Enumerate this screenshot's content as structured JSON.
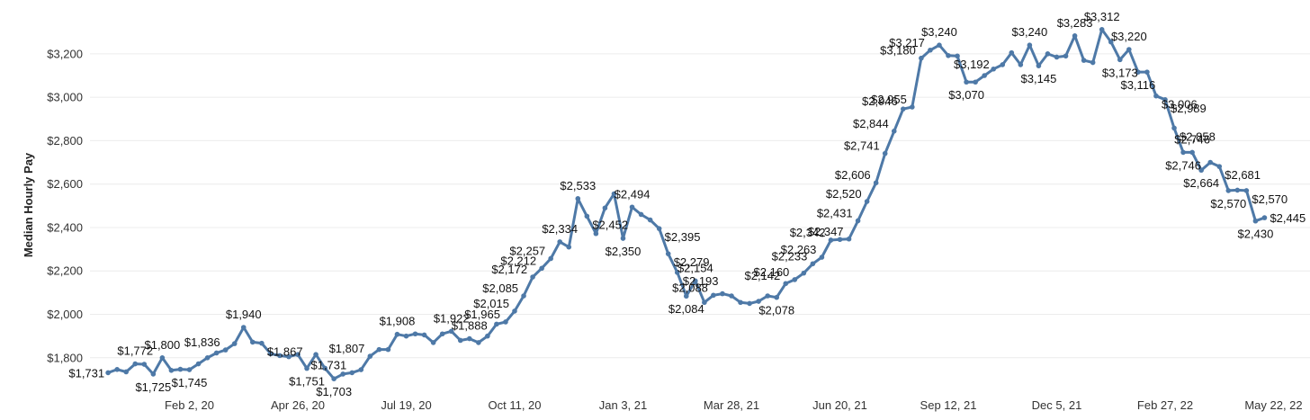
{
  "chart_data": {
    "type": "line",
    "title": "",
    "xlabel": "",
    "ylabel": "Median Hourly Pay",
    "ylim": [
      1650,
      3390
    ],
    "yticks": [
      {
        "value": 1800,
        "label": "$1,800"
      },
      {
        "value": 2000,
        "label": "$2,000"
      },
      {
        "value": 2200,
        "label": "$2,200"
      },
      {
        "value": 2400,
        "label": "$2,400"
      },
      {
        "value": 2600,
        "label": "$2,600"
      },
      {
        "value": 2800,
        "label": "$2,800"
      },
      {
        "value": 3000,
        "label": "$3,000"
      },
      {
        "value": 3200,
        "label": "$3,200"
      }
    ],
    "xticks": [
      {
        "date": "2020-02-02",
        "label": "Feb 2, 20"
      },
      {
        "date": "2020-04-26",
        "label": "Apr 26, 20"
      },
      {
        "date": "2020-07-19",
        "label": "Jul 19, 20"
      },
      {
        "date": "2020-10-11",
        "label": "Oct 11, 20"
      },
      {
        "date": "2021-01-03",
        "label": "Jan 3, 21"
      },
      {
        "date": "2021-03-28",
        "label": "Mar 28, 21"
      },
      {
        "date": "2021-06-20",
        "label": "Jun 20, 21"
      },
      {
        "date": "2021-09-12",
        "label": "Sep 12, 21"
      },
      {
        "date": "2021-12-05",
        "label": "Dec 5, 21"
      },
      {
        "date": "2022-02-27",
        "label": "Feb 27, 22"
      },
      {
        "date": "2022-05-22",
        "label": "May 22, 22"
      }
    ],
    "grid": true,
    "color": "#4e79a7",
    "series": [
      {
        "points": [
          {
            "x": "2019-12-01",
            "y": 1731,
            "label": "$1,731"
          },
          {
            "x": "2019-12-08",
            "y": 1746
          },
          {
            "x": "2019-12-15",
            "y": 1735
          },
          {
            "x": "2019-12-22",
            "y": 1772,
            "label": "$1,772"
          },
          {
            "x": "2019-12-29",
            "y": 1770
          },
          {
            "x": "2020-01-05",
            "y": 1725,
            "label": "$1,725"
          },
          {
            "x": "2020-01-12",
            "y": 1800,
            "label": "$1,800"
          },
          {
            "x": "2020-01-19",
            "y": 1742
          },
          {
            "x": "2020-01-26",
            "y": 1747
          },
          {
            "x": "2020-02-02",
            "y": 1745,
            "label": "$1,745"
          },
          {
            "x": "2020-02-09",
            "y": 1772
          },
          {
            "x": "2020-02-16",
            "y": 1800
          },
          {
            "x": "2020-02-23",
            "y": 1822
          },
          {
            "x": "2020-03-01",
            "y": 1836,
            "label": "$1,836"
          },
          {
            "x": "2020-03-08",
            "y": 1865
          },
          {
            "x": "2020-03-15",
            "y": 1940,
            "label": "$1,940"
          },
          {
            "x": "2020-03-22",
            "y": 1872
          },
          {
            "x": "2020-03-29",
            "y": 1867,
            "label": "$1,867"
          },
          {
            "x": "2020-04-05",
            "y": 1818
          },
          {
            "x": "2020-04-12",
            "y": 1810
          },
          {
            "x": "2020-04-19",
            "y": 1805
          },
          {
            "x": "2020-04-26",
            "y": 1815
          },
          {
            "x": "2020-05-03",
            "y": 1751,
            "label": "$1,751"
          },
          {
            "x": "2020-05-10",
            "y": 1815
          },
          {
            "x": "2020-05-17",
            "y": 1752
          },
          {
            "x": "2020-05-24",
            "y": 1703,
            "label": "$1,703"
          },
          {
            "x": "2020-05-31",
            "y": 1725
          },
          {
            "x": "2020-06-07",
            "y": 1731,
            "label": "$1,731"
          },
          {
            "x": "2020-06-14",
            "y": 1745
          },
          {
            "x": "2020-06-21",
            "y": 1807,
            "label": "$1,807"
          },
          {
            "x": "2020-06-28",
            "y": 1838
          },
          {
            "x": "2020-07-05",
            "y": 1838
          },
          {
            "x": "2020-07-12",
            "y": 1908,
            "label": "$1,908"
          },
          {
            "x": "2020-07-19",
            "y": 1900
          },
          {
            "x": "2020-07-26",
            "y": 1910
          },
          {
            "x": "2020-08-02",
            "y": 1905
          },
          {
            "x": "2020-08-09",
            "y": 1870
          },
          {
            "x": "2020-08-16",
            "y": 1910
          },
          {
            "x": "2020-08-23",
            "y": 1922,
            "label": "$1,922"
          },
          {
            "x": "2020-08-30",
            "y": 1880
          },
          {
            "x": "2020-09-06",
            "y": 1888,
            "label": "$1,888"
          },
          {
            "x": "2020-09-13",
            "y": 1870
          },
          {
            "x": "2020-09-20",
            "y": 1900
          },
          {
            "x": "2020-09-27",
            "y": 1955
          },
          {
            "x": "2020-10-04",
            "y": 1965,
            "label": "$1,965"
          },
          {
            "x": "2020-10-11",
            "y": 2015,
            "label": "$2,015"
          },
          {
            "x": "2020-10-18",
            "y": 2085,
            "label": "$2,085"
          },
          {
            "x": "2020-10-25",
            "y": 2172,
            "label": "$2,172"
          },
          {
            "x": "2020-11-01",
            "y": 2212,
            "label": "$2,212"
          },
          {
            "x": "2020-11-08",
            "y": 2257,
            "label": "$2,257"
          },
          {
            "x": "2020-11-15",
            "y": 2334,
            "label": "$2,334"
          },
          {
            "x": "2020-11-22",
            "y": 2310
          },
          {
            "x": "2020-11-29",
            "y": 2533,
            "label": "$2,533"
          },
          {
            "x": "2020-12-06",
            "y": 2452,
            "label": "$2,452"
          },
          {
            "x": "2020-12-13",
            "y": 2372
          },
          {
            "x": "2020-12-20",
            "y": 2490
          },
          {
            "x": "2020-12-27",
            "y": 2555
          },
          {
            "x": "2021-01-03",
            "y": 2350,
            "label": "$2,350"
          },
          {
            "x": "2021-01-10",
            "y": 2494,
            "label": "$2,494"
          },
          {
            "x": "2021-01-17",
            "y": 2460
          },
          {
            "x": "2021-01-24",
            "y": 2435
          },
          {
            "x": "2021-01-31",
            "y": 2395,
            "label": "$2,395"
          },
          {
            "x": "2021-02-07",
            "y": 2279,
            "label": "$2,279"
          },
          {
            "x": "2021-02-14",
            "y": 2193,
            "label": "$2,193"
          },
          {
            "x": "2021-02-21",
            "y": 2084,
            "label": "$2,084"
          },
          {
            "x": "2021-02-28",
            "y": 2154,
            "label": "$2,154"
          },
          {
            "x": "2021-03-07",
            "y": 2055
          },
          {
            "x": "2021-03-14",
            "y": 2088,
            "label": "$2,088"
          },
          {
            "x": "2021-03-21",
            "y": 2095
          },
          {
            "x": "2021-03-28",
            "y": 2085
          },
          {
            "x": "2021-04-04",
            "y": 2055
          },
          {
            "x": "2021-04-11",
            "y": 2050
          },
          {
            "x": "2021-04-18",
            "y": 2060
          },
          {
            "x": "2021-04-25",
            "y": 2085
          },
          {
            "x": "2021-05-02",
            "y": 2078,
            "label": "$2,078"
          },
          {
            "x": "2021-05-09",
            "y": 2142,
            "label": "$2,142"
          },
          {
            "x": "2021-05-16",
            "y": 2160,
            "label": "$2,160"
          },
          {
            "x": "2021-05-23",
            "y": 2190
          },
          {
            "x": "2021-05-30",
            "y": 2233,
            "label": "$2,233"
          },
          {
            "x": "2021-06-06",
            "y": 2263,
            "label": "$2,263"
          },
          {
            "x": "2021-06-13",
            "y": 2342,
            "label": "$2,342"
          },
          {
            "x": "2021-06-20",
            "y": 2345
          },
          {
            "x": "2021-06-27",
            "y": 2347,
            "label": "$2,347"
          },
          {
            "x": "2021-07-04",
            "y": 2431,
            "label": "$2,431"
          },
          {
            "x": "2021-07-11",
            "y": 2520,
            "label": "$2,520"
          },
          {
            "x": "2021-07-18",
            "y": 2606,
            "label": "$2,606"
          },
          {
            "x": "2021-07-25",
            "y": 2741,
            "label": "$2,741"
          },
          {
            "x": "2021-08-01",
            "y": 2844,
            "label": "$2,844"
          },
          {
            "x": "2021-08-08",
            "y": 2946,
            "label": "$2,946"
          },
          {
            "x": "2021-08-15",
            "y": 2955,
            "label": "$2,955"
          },
          {
            "x": "2021-08-22",
            "y": 3180,
            "label": "$3,180"
          },
          {
            "x": "2021-08-29",
            "y": 3217,
            "label": "$3,217"
          },
          {
            "x": "2021-09-05",
            "y": 3240,
            "label": "$3,240"
          },
          {
            "x": "2021-09-12",
            "y": 3192,
            "label": "$3,192"
          },
          {
            "x": "2021-09-19",
            "y": 3190
          },
          {
            "x": "2021-09-26",
            "y": 3070,
            "label": "$3,070"
          },
          {
            "x": "2021-10-03",
            "y": 3070
          },
          {
            "x": "2021-10-10",
            "y": 3100
          },
          {
            "x": "2021-10-17",
            "y": 3130
          },
          {
            "x": "2021-10-24",
            "y": 3150
          },
          {
            "x": "2021-10-31",
            "y": 3205
          },
          {
            "x": "2021-11-07",
            "y": 3150
          },
          {
            "x": "2021-11-14",
            "y": 3240,
            "label": "$3,240"
          },
          {
            "x": "2021-11-21",
            "y": 3145,
            "label": "$3,145"
          },
          {
            "x": "2021-11-28",
            "y": 3200
          },
          {
            "x": "2021-12-05",
            "y": 3185
          },
          {
            "x": "2021-12-12",
            "y": 3190
          },
          {
            "x": "2021-12-19",
            "y": 3283,
            "label": "$3,283"
          },
          {
            "x": "2021-12-26",
            "y": 3170
          },
          {
            "x": "2022-01-02",
            "y": 3160
          },
          {
            "x": "2022-01-09",
            "y": 3312,
            "label": "$3,312"
          },
          {
            "x": "2022-01-16",
            "y": 3255
          },
          {
            "x": "2022-01-23",
            "y": 3173,
            "label": "$3,173"
          },
          {
            "x": "2022-01-30",
            "y": 3220,
            "label": "$3,220"
          },
          {
            "x": "2022-02-06",
            "y": 3116,
            "label": "$3,116"
          },
          {
            "x": "2022-02-13",
            "y": 3116
          },
          {
            "x": "2022-02-20",
            "y": 3006,
            "label": "$3,006"
          },
          {
            "x": "2022-02-27",
            "y": 2989,
            "label": "$2,989"
          },
          {
            "x": "2022-03-06",
            "y": 2858,
            "label": "$2,858"
          },
          {
            "x": "2022-03-13",
            "y": 2746,
            "label": "$2,746"
          },
          {
            "x": "2022-03-20",
            "y": 2746,
            "label": "$2,746"
          },
          {
            "x": "2022-03-27",
            "y": 2664,
            "label": "$2,664"
          },
          {
            "x": "2022-04-03",
            "y": 2700
          },
          {
            "x": "2022-04-10",
            "y": 2681,
            "label": "$2,681"
          },
          {
            "x": "2022-04-17",
            "y": 2570,
            "label": "$2,570"
          },
          {
            "x": "2022-04-24",
            "y": 2572
          },
          {
            "x": "2022-05-01",
            "y": 2570,
            "label": "$2,570"
          },
          {
            "x": "2022-05-08",
            "y": 2430,
            "label": "$2,430"
          },
          {
            "x": "2022-05-15",
            "y": 2445,
            "label": "$2,445"
          }
        ]
      }
    ]
  }
}
